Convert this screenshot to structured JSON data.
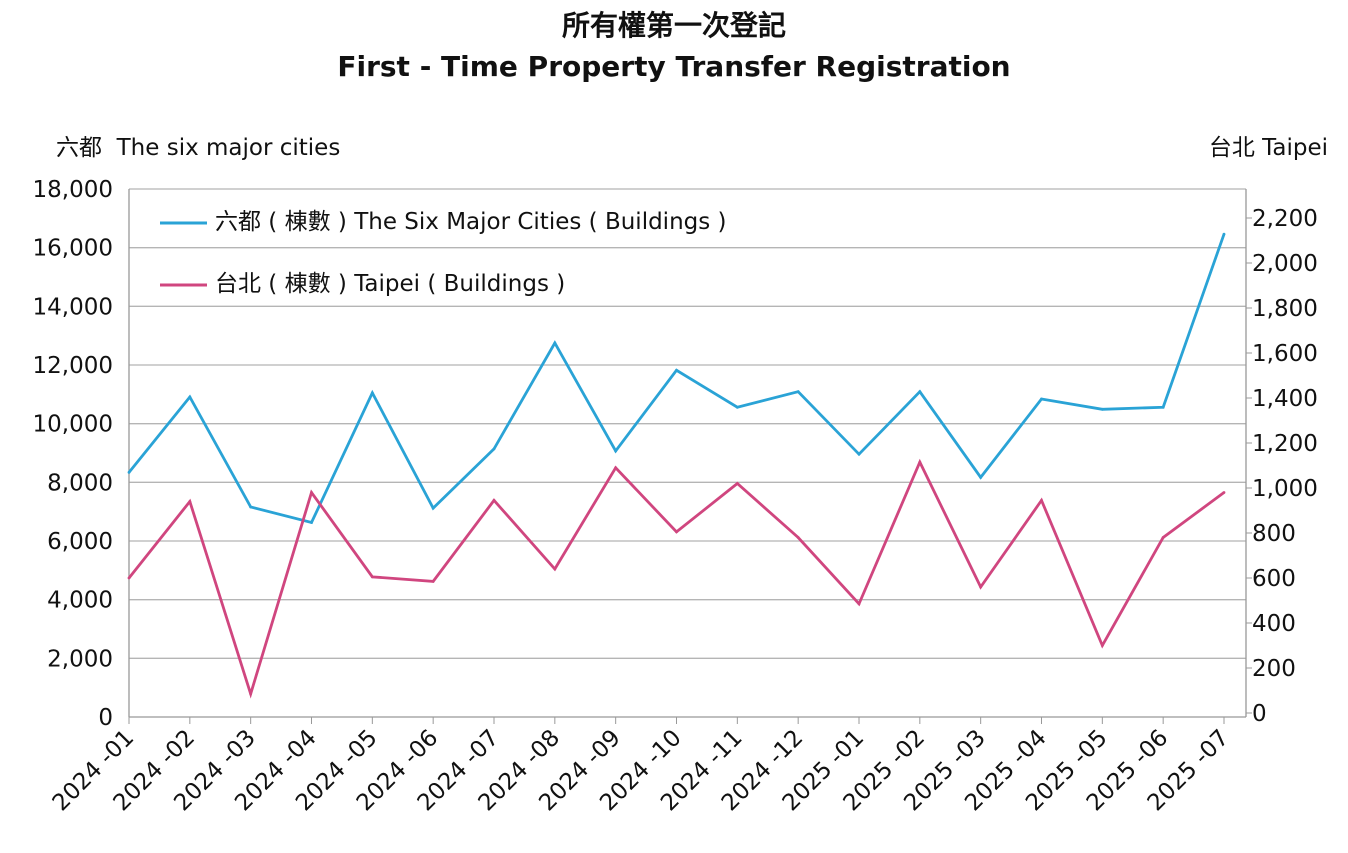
{
  "chart_data": {
    "type": "line",
    "title": "所有權第一次登記",
    "subtitle": "First - Time Property Transfer Registration",
    "ylabel_left": "六都  The six major cities",
    "ylabel_right": "台北 Taipei",
    "categories": [
      "2024 -01",
      "2024 -02",
      "2024 -03",
      "2024 -04",
      "2024 -05",
      "2024 -06",
      "2024 -07",
      "2024 -08",
      "2024 -09",
      "2024 -10",
      "2024 -11",
      "2024 -12",
      "2025 -01",
      "2025 -02",
      "2025 -03",
      "2025 -04",
      "2025 -05",
      "2025 -06",
      "2025 -07"
    ],
    "ylim_left": [
      0,
      18000
    ],
    "yticks_left": [
      "0",
      "2,000",
      "4,000",
      "6,000",
      "8,000",
      "10,000",
      "12,000",
      "14,000",
      "16,000",
      "18,000"
    ],
    "ylim_right": [
      0,
      2340
    ],
    "yticks_right": [
      "0",
      "200",
      "400",
      "600",
      "800",
      "1,000",
      "1,200",
      "1,400",
      "1,600",
      "1,800",
      "2,000",
      "2,200"
    ],
    "grid": true,
    "legend_position": "top-left inside",
    "series": [
      {
        "name": "六都 ( 棟數 ) The Six Major Cities ( Buildings )",
        "axis": "left",
        "color": "#2aa3d6",
        "values": [
          8340,
          10910,
          7160,
          6630,
          11050,
          7120,
          9140,
          12750,
          9070,
          11820,
          10560,
          11090,
          8960,
          11090,
          8170,
          10840,
          10490,
          10560,
          16460
        ]
      },
      {
        "name": "台北 ( 棟數 ) Taipei ( Buildings )",
        "axis": "right",
        "color": "#d0467f",
        "values": [
          600,
          940,
          85,
          980,
          605,
          585,
          945,
          640,
          1090,
          805,
          1020,
          780,
          485,
          1115,
          560,
          945,
          300,
          780,
          980
        ]
      }
    ]
  }
}
